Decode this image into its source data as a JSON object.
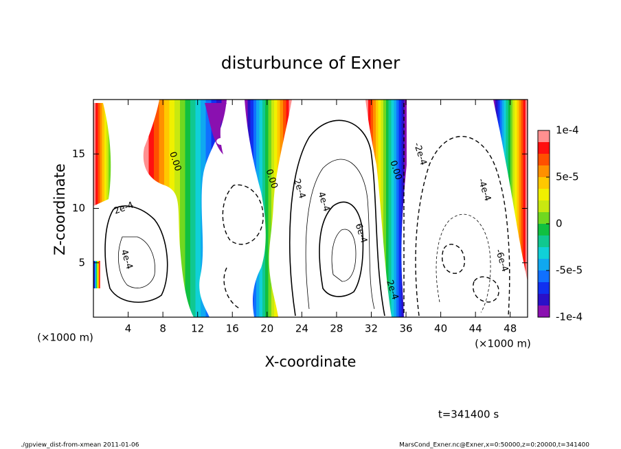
{
  "chart_data": {
    "type": "contour",
    "title": "disturbunce of Exner",
    "xlabel": "X-coordinate",
    "ylabel": "Z-coordinate",
    "xunit": "(×1000 m)",
    "xlim": [
      0,
      50
    ],
    "xticks": [
      4,
      8,
      12,
      16,
      20,
      24,
      28,
      32,
      36,
      40,
      44,
      48
    ],
    "ylim": [
      0,
      20
    ],
    "yticks": [
      5,
      10,
      15
    ],
    "colorbar": {
      "lim": [
        -0.0001,
        0.0001
      ],
      "ticks": [
        {
          "value": -0.0001,
          "label": "-1e-4"
        },
        {
          "value": -5e-05,
          "label": "-5e-5"
        },
        0,
        {
          "value": 5e-05,
          "label": "5e-5"
        },
        {
          "value": 0.0001,
          "label": "1e-4"
        }
      ],
      "colors": [
        "#8a10b0",
        "#2a10c8",
        "#1030f0",
        "#1070ff",
        "#10a8f0",
        "#10d0d8",
        "#10c890",
        "#10c040",
        "#70d820",
        "#c8e810",
        "#f0f000",
        "#ffc800",
        "#ff9000",
        "#ff5000",
        "#ff1010",
        "#ff9090"
      ]
    },
    "contour_labels": [
      {
        "text": "2e-4",
        "x": 3.5,
        "z": 10.0
      },
      {
        "text": "4e-4",
        "x": 3.8,
        "z": 5.3
      },
      {
        "text": "0.00",
        "x": 9.4,
        "z": 14.3
      },
      {
        "text": "0.00",
        "x": 20.5,
        "z": 12.7
      },
      {
        "text": "2e-4",
        "x": 23.7,
        "z": 11.8
      },
      {
        "text": "4e-4",
        "x": 26.5,
        "z": 10.6
      },
      {
        "text": "6e-4",
        "x": 30.8,
        "z": 7.7
      },
      {
        "text": "0.00",
        "x": 34.8,
        "z": 13.5
      },
      {
        "text": "2e-4",
        "x": 34.4,
        "z": 2.5
      },
      {
        "text": "-2e-4",
        "x": 37.6,
        "z": 15.0
      },
      {
        "text": "-4e-4",
        "x": 45.0,
        "z": 11.7
      },
      {
        "text": "-6e-4",
        "x": 47.0,
        "z": 5.2
      }
    ],
    "time_label": "t=341400 s",
    "footer_left": "./gpview_dist-from-xmean  2011-01-06",
    "footer_right": "MarsCond_Exner.nc@Exner,x=0:50000,z=0:20000,t=341400"
  }
}
